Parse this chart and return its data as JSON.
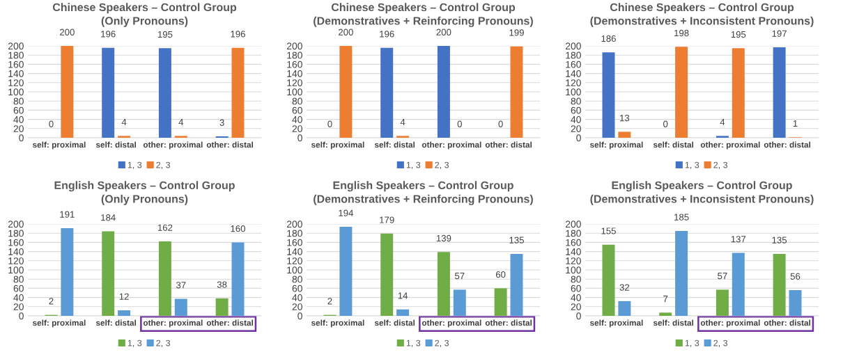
{
  "chart_data": [
    {
      "type": "bar",
      "title": "Chinese Speakers – Control Group\n(Only Pronouns)",
      "categories": [
        "self: proximal",
        "self: distal",
        "other: proximal",
        "other: distal"
      ],
      "series": [
        {
          "name": "1, 3",
          "color": "#4472c4",
          "values": [
            0,
            196,
            195,
            3
          ]
        },
        {
          "name": "2, 3",
          "color": "#ed7d31",
          "values": [
            200,
            4,
            4,
            196
          ]
        }
      ],
      "ylim": [
        0,
        200
      ],
      "yticks": [
        0,
        20,
        40,
        60,
        80,
        100,
        120,
        140,
        160,
        180,
        200
      ],
      "grid": "y",
      "legend": "bottom",
      "data_labels": true
    },
    {
      "type": "bar",
      "title": "Chinese Speakers – Control Group\n(Demonstratives + Reinforcing Pronouns)",
      "categories": [
        "self: proximal",
        "self: distal",
        "other: proximal",
        "other: distal"
      ],
      "series": [
        {
          "name": "1, 3",
          "color": "#4472c4",
          "values": [
            0,
            196,
            200,
            0
          ]
        },
        {
          "name": "2, 3",
          "color": "#ed7d31",
          "values": [
            200,
            4,
            0,
            199
          ]
        }
      ],
      "ylim": [
        0,
        200
      ],
      "yticks": [
        0,
        20,
        40,
        60,
        80,
        100,
        120,
        140,
        160,
        180,
        200
      ],
      "grid": "y",
      "legend": "bottom",
      "data_labels": true
    },
    {
      "type": "bar",
      "title": "Chinese Speakers – Control Group\n(Demonstratives + Inconsistent Pronouns)",
      "categories": [
        "self: proximal",
        "self: distal",
        "other: proximal",
        "other: distal"
      ],
      "series": [
        {
          "name": "1, 3",
          "color": "#4472c4",
          "values": [
            186,
            0,
            4,
            197
          ]
        },
        {
          "name": "2, 3",
          "color": "#ed7d31",
          "values": [
            13,
            198,
            195,
            1
          ]
        }
      ],
      "ylim": [
        0,
        200
      ],
      "yticks": [
        0,
        20,
        40,
        60,
        80,
        100,
        120,
        140,
        160,
        180,
        200
      ],
      "grid": "y",
      "legend": "bottom",
      "data_labels": true
    },
    {
      "type": "bar",
      "title": "English Speakers – Control Group\n(Only Pronouns)",
      "categories": [
        "self: proximal",
        "self: distal",
        "other: proximal",
        "other: distal"
      ],
      "series": [
        {
          "name": "1, 3",
          "color": "#70ad47",
          "values": [
            2,
            184,
            162,
            38
          ]
        },
        {
          "name": "2, 3",
          "color": "#5b9bd5",
          "values": [
            191,
            12,
            37,
            160
          ]
        }
      ],
      "ylim": [
        0,
        200
      ],
      "yticks": [
        0,
        20,
        40,
        60,
        80,
        100,
        120,
        140,
        160,
        180,
        200
      ],
      "grid": "y",
      "legend": "bottom",
      "data_labels": true
    },
    {
      "type": "bar",
      "title": "English Speakers – Control Group\n(Demonstratives + Reinforcing Pronouns)",
      "categories": [
        "self: proximal",
        "self: distal",
        "other: proximal",
        "other: distal"
      ],
      "series": [
        {
          "name": "1, 3",
          "color": "#70ad47",
          "values": [
            2,
            179,
            139,
            60
          ]
        },
        {
          "name": "2, 3",
          "color": "#5b9bd5",
          "values": [
            194,
            14,
            57,
            135
          ]
        }
      ],
      "ylim": [
        0,
        200
      ],
      "yticks": [
        0,
        20,
        40,
        60,
        80,
        100,
        120,
        140,
        160,
        180,
        200
      ],
      "grid": "y",
      "legend": "bottom",
      "data_labels": true
    },
    {
      "type": "bar",
      "title": "English Speakers – Control Group\n(Demonstratives + Inconsistent Pronouns)",
      "categories": [
        "self: proximal",
        "self: distal",
        "other: proximal",
        "other: distal"
      ],
      "series": [
        {
          "name": "1, 3",
          "color": "#70ad47",
          "values": [
            155,
            7,
            57,
            135
          ]
        },
        {
          "name": "2, 3",
          "color": "#5b9bd5",
          "values": [
            32,
            185,
            137,
            56
          ]
        }
      ],
      "ylim": [
        0,
        200
      ],
      "yticks": [
        0,
        20,
        40,
        60,
        80,
        100,
        120,
        140,
        160,
        180,
        200
      ],
      "grid": "y",
      "legend": "bottom",
      "data_labels": true
    }
  ]
}
